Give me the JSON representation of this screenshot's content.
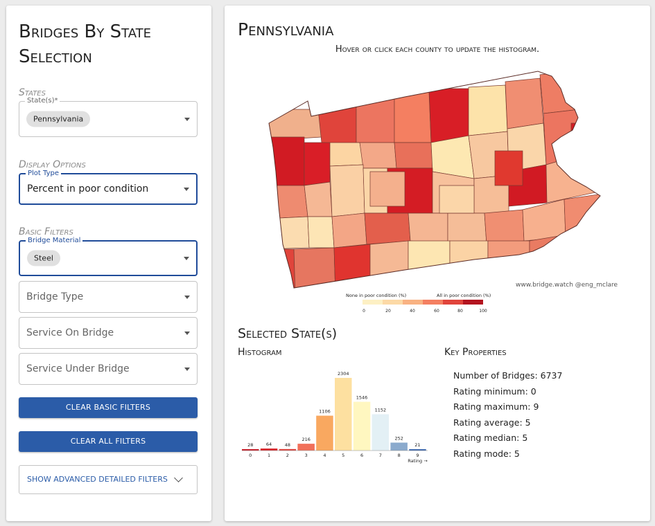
{
  "sidebar": {
    "title": "Bridges By State Selection",
    "states_section": "States",
    "state_field": {
      "label": "State(s)*",
      "value": "Pennsylvania"
    },
    "display_section": "Display Options",
    "plot_type": {
      "label": "Plot Type",
      "value": "Percent in poor condition"
    },
    "basic_section": "Basic Filters",
    "bridge_material": {
      "label": "Bridge Material",
      "value": "Steel"
    },
    "bridge_type": {
      "placeholder": "Bridge Type"
    },
    "service_on": {
      "placeholder": "Service On Bridge"
    },
    "service_under": {
      "placeholder": "Service Under Bridge"
    },
    "clear_basic": "Clear Basic Filters",
    "clear_all": "Clear All Filters",
    "advanced": "Show Advanced Detailed Filters"
  },
  "main": {
    "state_title": "Pennsylvania",
    "instructions": "Hover or click each county to update the histogram.",
    "credit": "www.bridge.watch @eng_mclare",
    "legend": {
      "low_label": "None in poor condition (%)",
      "high_label": "All in poor condition (%)",
      "ticks": [
        "0",
        "20",
        "40",
        "60",
        "80",
        "100"
      ],
      "colors": [
        "#fdf0c4",
        "#fcd9a6",
        "#f9b282",
        "#f47f61",
        "#e0443b",
        "#b3141f"
      ]
    },
    "selected_title": "Selected State(s)",
    "histogram_title": "Histogram",
    "props_title": "Key Properties",
    "properties": {
      "count": "Number of Bridges: 6737",
      "min": "Rating minimum: 0",
      "max": "Rating maximum: 9",
      "avg": "Rating average: 5",
      "median": "Rating median: 5",
      "mode": "Rating mode: 5"
    }
  },
  "chart_data": {
    "type": "bar",
    "title": "Histogram",
    "xlabel": "Rating →",
    "ylabel": "",
    "categories": [
      "0",
      "1",
      "2",
      "3",
      "4",
      "5",
      "6",
      "7",
      "8",
      "9"
    ],
    "values": [
      28,
      64,
      48,
      216,
      1106,
      2304,
      1546,
      1152,
      252,
      21
    ],
    "colors": [
      "#c8131f",
      "#d9252a",
      "#e0403a",
      "#f1705a",
      "#f9a860",
      "#fde0a0",
      "#fff7c0",
      "#e3f0f5",
      "#8baacd",
      "#3a67b0"
    ],
    "ylim": [
      0,
      2304
    ]
  }
}
